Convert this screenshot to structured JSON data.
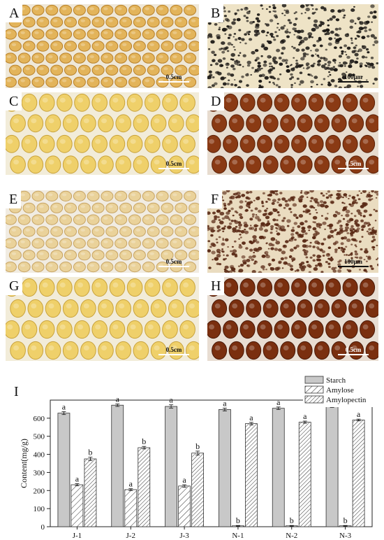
{
  "panels": [
    {
      "label": "A",
      "scale": "0.5cm",
      "style": "seed-dry"
    },
    {
      "label": "B",
      "scale": "100μm",
      "style": "micro-light"
    },
    {
      "label": "C",
      "scale": "0.5cm",
      "style": "seed-yellow"
    },
    {
      "label": "D",
      "scale": "0.5cm",
      "style": "seed-iodine"
    },
    {
      "label": "E",
      "scale": "0.5cm",
      "style": "seed-pale"
    },
    {
      "label": "F",
      "scale": "100μm",
      "style": "micro-dense"
    },
    {
      "label": "G",
      "scale": "0.5cm",
      "style": "seed-yellow"
    },
    {
      "label": "H",
      "scale": "0.5cm",
      "style": "seed-iodine-dark"
    }
  ],
  "colors": {
    "seed-dry": {
      "bg": "#efe8d8",
      "fill": "#e3b45a",
      "edge": "#b9822c"
    },
    "seed-yellow": {
      "bg": "#f2ecd9",
      "fill": "#efd06a",
      "edge": "#c9a33c"
    },
    "seed-pale": {
      "bg": "#f1ece2",
      "fill": "#ead29a",
      "edge": "#c7a464"
    },
    "seed-iodine": {
      "bg": "#e7dccf",
      "fill": "#8a3a14",
      "edge": "#5a2108"
    },
    "seed-iodine-dark": {
      "bg": "#e8ddd2",
      "fill": "#7a2f0f",
      "edge": "#4a1806"
    },
    "micro-light": {
      "bg": "#eee3c6",
      "dot": "#1d1a17"
    },
    "micro-dense": {
      "bg": "#eadcc0",
      "dot": "#5a2a16"
    },
    "bar_fill": "#c8c8c8"
  },
  "chart_label": "I",
  "chart_data": {
    "type": "bar",
    "categories": [
      "J-1",
      "J-2",
      "J-3",
      "N-1",
      "N-2",
      "N-3"
    ],
    "ylabel": "Content(mg/g)",
    "ylim": [
      0,
      700
    ],
    "yticks": [
      0,
      100,
      200,
      300,
      400,
      500,
      600
    ],
    "legend_position": "top-right",
    "series": [
      {
        "name": "Starch",
        "pattern": "solid",
        "values": [
          628,
          672,
          665,
          648,
          655,
          668
        ],
        "err": [
          8,
          7,
          9,
          8,
          7,
          8
        ],
        "letters": [
          "a",
          "a",
          "a",
          "a",
          "a",
          "a"
        ]
      },
      {
        "name": "Amylose",
        "pattern": "hatch",
        "values": [
          232,
          205,
          225,
          5,
          5,
          5
        ],
        "err": [
          6,
          5,
          7,
          2,
          2,
          2
        ],
        "letters": [
          "a",
          "a",
          "a",
          "b",
          "b",
          "b"
        ]
      },
      {
        "name": "Amylopectin",
        "pattern": "hatch-dense",
        "values": [
          375,
          437,
          407,
          570,
          578,
          590
        ],
        "err": [
          9,
          7,
          11,
          7,
          6,
          5
        ],
        "letters": [
          "b",
          "b",
          "b",
          "a",
          "a",
          "a"
        ]
      }
    ]
  }
}
